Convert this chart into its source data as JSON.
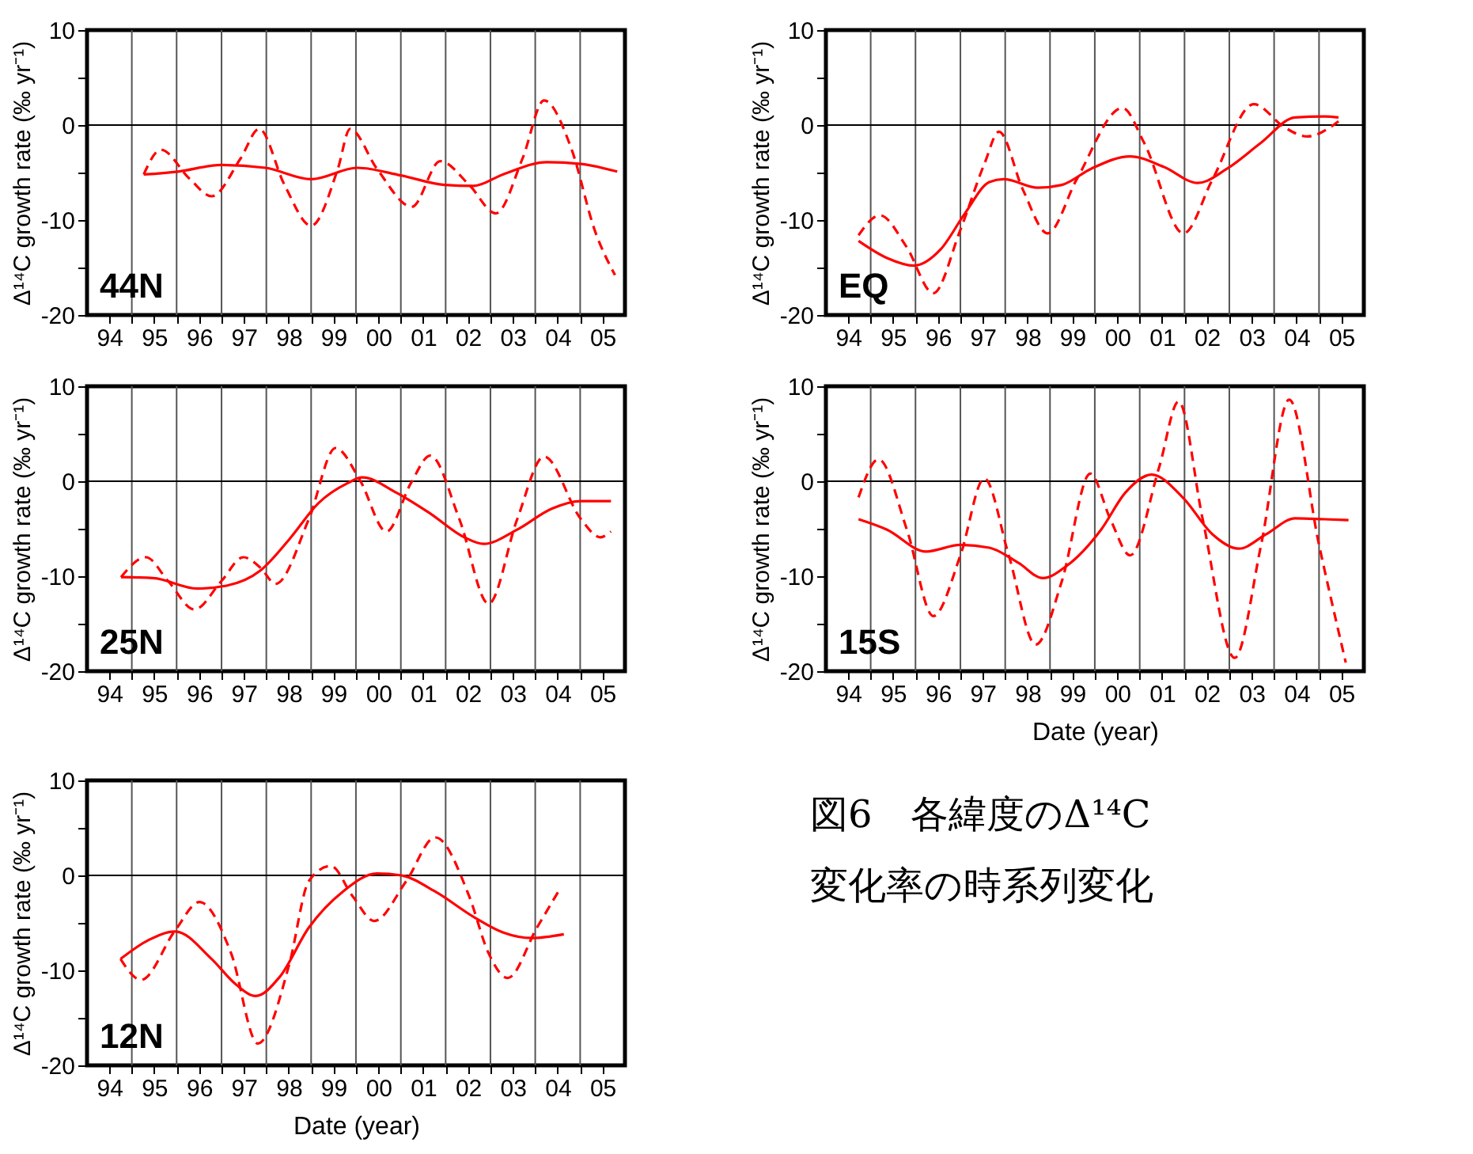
{
  "chart_data": [
    {
      "type": "line",
      "ylabel": "Δ¹⁴C growth rate (‰ yr⁻¹)",
      "annotations": [
        "44N"
      ],
      "xlim": [
        "1994-01-01",
        "2006-01-01"
      ],
      "ylim": [
        -20,
        10
      ],
      "xticks": [
        {
          "value": "1994-07-02",
          "label": "94"
        },
        {
          "value": "1995-07-02",
          "label": "95"
        },
        {
          "value": "1996-07-02",
          "label": "96"
        },
        {
          "value": "1997-07-02",
          "label": "97"
        },
        {
          "value": "1998-07-02",
          "label": "98"
        },
        {
          "value": "1999-07-02",
          "label": "99"
        },
        {
          "value": "2000-07-02",
          "label": "00"
        },
        {
          "value": "2001-07-02",
          "label": "01"
        },
        {
          "value": "2002-07-02",
          "label": "02"
        },
        {
          "value": "2003-07-02",
          "label": "03"
        },
        {
          "value": "2004-07-02",
          "label": "04"
        },
        {
          "value": "2005-07-02",
          "label": "05"
        },
        {
          "value": "1995-01-01",
          "label": null
        },
        {
          "value": "1996-01-01",
          "label": null
        },
        {
          "value": "1997-01-01",
          "label": null
        },
        {
          "value": "1998-01-01",
          "label": null
        },
        {
          "value": "1999-01-01",
          "label": null
        },
        {
          "value": "2000-01-01",
          "label": null
        },
        {
          "value": "2001-01-01",
          "label": null
        },
        {
          "value": "2002-01-01",
          "label": null
        },
        {
          "value": "2003-01-01",
          "label": null
        },
        {
          "value": "2004-01-01",
          "label": null
        },
        {
          "value": "2005-01-01",
          "label": null
        }
      ],
      "yticks": [
        -20,
        -10,
        0,
        10,
        {
          "value": -15,
          "label": null
        },
        {
          "value": -5,
          "label": null
        },
        {
          "value": 5,
          "label": null
        }
      ],
      "grid": "x",
      "ref_lines": [
        {
          "axis": "y",
          "value": 0
        }
      ],
      "series": [
        {
          "color": "#ff0000",
          "line_style": "solid",
          "x": [
            "1995-04-08",
            "1996-01-12",
            "1997-01-01",
            "1997-12-24",
            "1999-01-01",
            "2000-01-12",
            "2001-01-01",
            "2001-12-24",
            "2002-08-18",
            "2003-04-12",
            "2004-04-05",
            "2005-01-08",
            "2005-10-30"
          ],
          "values": [
            -5.2,
            -4.9,
            -4.2,
            -4.5,
            -5.7,
            -4.5,
            -5.3,
            -6.3,
            -6.4,
            -5.2,
            -3.9,
            -4.1,
            -4.9
          ]
        },
        {
          "color": "#ff0000",
          "line_style": "dashed",
          "x": [
            "1995-04-08",
            "1995-08-25",
            "1996-04-19",
            "1996-10-12",
            "1997-06-06",
            "1997-11-03",
            "1998-05-29",
            "1999-01-01",
            "1999-08-07",
            "1999-11-14",
            "2000-06-20",
            "2001-04-01",
            "2001-11-18",
            "2002-07-12",
            "2003-02-14",
            "2003-09-20",
            "2004-03-13",
            "2004-10-19",
            "2005-05-03",
            "2005-10-12"
          ],
          "values": [
            -5.2,
            -2.6,
            -5.7,
            -7.5,
            -3.5,
            -0.4,
            -6.3,
            -10.6,
            -4.6,
            -0.4,
            -4.6,
            -8.6,
            -3.8,
            -6.3,
            -9.3,
            -3.5,
            2.6,
            -2.4,
            -11.2,
            -15.8
          ]
        }
      ]
    },
    {
      "type": "line",
      "ylabel": "Δ¹⁴C growth rate (‰ yr⁻¹)",
      "annotations": [
        "EQ"
      ],
      "xlim": [
        "1994-01-01",
        "2006-01-01"
      ],
      "ylim": [
        -20,
        10
      ],
      "xticks": [
        {
          "value": "1994-07-02",
          "label": "94"
        },
        {
          "value": "1995-07-02",
          "label": "95"
        },
        {
          "value": "1996-07-02",
          "label": "96"
        },
        {
          "value": "1997-07-02",
          "label": "97"
        },
        {
          "value": "1998-07-02",
          "label": "98"
        },
        {
          "value": "1999-07-02",
          "label": "99"
        },
        {
          "value": "2000-07-02",
          "label": "00"
        },
        {
          "value": "2001-07-02",
          "label": "01"
        },
        {
          "value": "2002-07-02",
          "label": "02"
        },
        {
          "value": "2003-07-02",
          "label": "03"
        },
        {
          "value": "2004-07-02",
          "label": "04"
        },
        {
          "value": "2005-07-02",
          "label": "05"
        },
        {
          "value": "1995-01-01",
          "label": null
        },
        {
          "value": "1996-01-01",
          "label": null
        },
        {
          "value": "1997-01-01",
          "label": null
        },
        {
          "value": "1998-01-01",
          "label": null
        },
        {
          "value": "1999-01-01",
          "label": null
        },
        {
          "value": "2000-01-01",
          "label": null
        },
        {
          "value": "2001-01-01",
          "label": null
        },
        {
          "value": "2002-01-01",
          "label": null
        },
        {
          "value": "2003-01-01",
          "label": null
        },
        {
          "value": "2004-01-01",
          "label": null
        },
        {
          "value": "2005-01-01",
          "label": null
        }
      ],
      "yticks": [
        -20,
        -10,
        0,
        10,
        {
          "value": -15,
          "label": null
        },
        {
          "value": -5,
          "label": null
        },
        {
          "value": 5,
          "label": null
        }
      ],
      "grid": "x",
      "ref_lines": [
        {
          "axis": "y",
          "value": 0
        }
      ],
      "series": [
        {
          "color": "#ff0000",
          "line_style": "solid",
          "x": [
            "1994-09-24",
            "1995-05-14",
            "1995-12-20",
            "1996-07-23",
            "1997-02-07",
            "1997-08-25",
            "1997-12-20",
            "1998-09-24",
            "1999-04-08",
            "1999-12-02",
            "2000-10-15",
            "2001-07-15",
            "2002-04-19",
            "2002-12-13",
            "2003-09-13",
            "2004-06-20",
            "2005-02-14",
            "2005-06-09"
          ],
          "values": [
            -12.2,
            -14.0,
            -14.8,
            -13.1,
            -9.3,
            -6.0,
            -5.7,
            -6.6,
            -6.3,
            -4.6,
            -3.3,
            -4.4,
            -6.1,
            -4.6,
            -1.9,
            0.8,
            0.9,
            0.8
          ]
        },
        {
          "color": "#ff0000",
          "line_style": "dashed",
          "x": [
            "1994-09-24",
            "1995-03-17",
            "1995-10-19",
            "1996-05-25",
            "1996-12-27",
            "1997-07-15",
            "1997-11-11",
            "1998-05-25",
            "1998-12-13",
            "1999-08-07",
            "2000-08-14",
            "2001-02-07",
            "2001-12-24",
            "2002-08-18",
            "2003-07-19",
            "2004-04-01",
            "2004-09-27",
            "2005-06-09"
          ],
          "values": [
            -11.6,
            -9.5,
            -12.8,
            -17.7,
            -11.2,
            -4.1,
            -0.7,
            -6.8,
            -11.4,
            -5.7,
            1.8,
            -1.9,
            -11.4,
            -5.7,
            2.2,
            -0.3,
            -1.2,
            0.4
          ]
        }
      ]
    },
    {
      "type": "line",
      "ylabel": "Δ¹⁴C growth rate (‰ yr⁻¹)",
      "annotations": [
        "25N"
      ],
      "xlim": [
        "1994-01-01",
        "2006-01-01"
      ],
      "ylim": [
        -20,
        10
      ],
      "xticks": [
        {
          "value": "1994-07-02",
          "label": "94"
        },
        {
          "value": "1995-07-02",
          "label": "95"
        },
        {
          "value": "1996-07-02",
          "label": "96"
        },
        {
          "value": "1997-07-02",
          "label": "97"
        },
        {
          "value": "1998-07-02",
          "label": "98"
        },
        {
          "value": "1999-07-02",
          "label": "99"
        },
        {
          "value": "2000-07-02",
          "label": "00"
        },
        {
          "value": "2001-07-02",
          "label": "01"
        },
        {
          "value": "2002-07-02",
          "label": "02"
        },
        {
          "value": "2003-07-02",
          "label": "03"
        },
        {
          "value": "2004-07-02",
          "label": "04"
        },
        {
          "value": "2005-07-02",
          "label": "05"
        },
        {
          "value": "1995-01-01",
          "label": null
        },
        {
          "value": "1996-01-01",
          "label": null
        },
        {
          "value": "1997-01-01",
          "label": null
        },
        {
          "value": "1998-01-01",
          "label": null
        },
        {
          "value": "1999-01-01",
          "label": null
        },
        {
          "value": "2000-01-01",
          "label": null
        },
        {
          "value": "2001-01-01",
          "label": null
        },
        {
          "value": "2002-01-01",
          "label": null
        },
        {
          "value": "2003-01-01",
          "label": null
        },
        {
          "value": "2004-01-01",
          "label": null
        },
        {
          "value": "2005-01-01",
          "label": null
        }
      ],
      "yticks": [
        -20,
        -10,
        0,
        10,
        {
          "value": -15,
          "label": null
        },
        {
          "value": -5,
          "label": null
        },
        {
          "value": 5,
          "label": null
        }
      ],
      "grid": "x",
      "ref_lines": [
        {
          "axis": "y",
          "value": 0
        }
      ],
      "series": [
        {
          "color": "#ff0000",
          "line_style": "solid",
          "x": [
            "1994-10-05",
            "1995-06-24",
            "1996-06-17",
            "1997-02-11",
            "1997-11-14",
            "1998-07-08",
            "1999-03-02",
            "1999-10-26",
            "2000-02-21",
            "2000-11-25",
            "2001-08-29",
            "2002-06-02",
            "2002-11-07",
            "2003-08-07",
            "2004-05-14",
            "2005-01-08",
            "2005-09-09"
          ],
          "values": [
            -10.1,
            -10.2,
            -11.3,
            -11.0,
            -9.4,
            -6.1,
            -2.3,
            -0.2,
            0.4,
            -1.2,
            -3.4,
            -5.9,
            -6.6,
            -5.1,
            -2.9,
            -2.1,
            -2.1
          ]
        },
        {
          "color": "#ff0000",
          "line_style": "dashed",
          "x": [
            "1994-10-05",
            "1995-04-26",
            "1995-10-23",
            "1996-05-25",
            "1997-01-01",
            "1997-06-27",
            "1997-11-14",
            "1998-03-17",
            "1998-12-13",
            "1999-07-19",
            "2000-02-03",
            "2000-09-06",
            "2001-03-24",
            "2001-08-29",
            "2002-04-23",
            "2002-12-17",
            "2003-08-07",
            "2004-03-13",
            "2005-01-08",
            "2005-06-13",
            "2005-09-09"
          ],
          "values": [
            -10.1,
            -8.0,
            -10.5,
            -13.5,
            -10.5,
            -8.0,
            -9.1,
            -10.8,
            -4.0,
            3.5,
            0.1,
            -5.3,
            -0.2,
            2.7,
            -4.0,
            -12.9,
            -4.0,
            2.6,
            -4.0,
            -5.9,
            -5.3
          ]
        }
      ]
    },
    {
      "type": "line",
      "ylabel": "Δ¹⁴C growth rate (‰ yr⁻¹)",
      "xlabel": "Date (year)",
      "annotations": [
        "15S"
      ],
      "xlim": [
        "1994-01-01",
        "2006-01-01"
      ],
      "ylim": [
        -20,
        10
      ],
      "xticks": [
        {
          "value": "1994-07-02",
          "label": "94"
        },
        {
          "value": "1995-07-02",
          "label": "95"
        },
        {
          "value": "1996-07-02",
          "label": "96"
        },
        {
          "value": "1997-07-02",
          "label": "97"
        },
        {
          "value": "1998-07-02",
          "label": "98"
        },
        {
          "value": "1999-07-02",
          "label": "99"
        },
        {
          "value": "2000-07-02",
          "label": "00"
        },
        {
          "value": "2001-07-02",
          "label": "01"
        },
        {
          "value": "2002-07-02",
          "label": "02"
        },
        {
          "value": "2003-07-02",
          "label": "03"
        },
        {
          "value": "2004-07-02",
          "label": "04"
        },
        {
          "value": "2005-07-02",
          "label": "05"
        },
        {
          "value": "1995-01-01",
          "label": null
        },
        {
          "value": "1996-01-01",
          "label": null
        },
        {
          "value": "1997-01-01",
          "label": null
        },
        {
          "value": "1998-01-01",
          "label": null
        },
        {
          "value": "1999-01-01",
          "label": null
        },
        {
          "value": "2000-01-01",
          "label": null
        },
        {
          "value": "2001-01-01",
          "label": null
        },
        {
          "value": "2002-01-01",
          "label": null
        },
        {
          "value": "2003-01-01",
          "label": null
        },
        {
          "value": "2004-01-01",
          "label": null
        },
        {
          "value": "2005-01-01",
          "label": null
        }
      ],
      "yticks": [
        -20,
        -10,
        0,
        10,
        {
          "value": -15,
          "label": null
        },
        {
          "value": -5,
          "label": null
        },
        {
          "value": 5,
          "label": null
        }
      ],
      "grid": "x",
      "ref_lines": [
        {
          "axis": "y",
          "value": 0
        }
      ],
      "series": [
        {
          "color": "#ff0000",
          "line_style": "solid",
          "x": [
            "1994-09-24",
            "1995-05-14",
            "1996-03-27",
            "1997-01-01",
            "1997-08-25",
            "1998-04-19",
            "1998-11-03",
            "1999-05-18",
            "2000-02-21",
            "2000-09-06",
            "2001-04-08",
            "2001-12-24",
            "2002-08-18",
            "2003-03-20",
            "2003-10-26",
            "2004-06-20",
            "2005-02-14",
            "2005-08-29"
          ],
          "values": [
            -4.0,
            -5.1,
            -7.4,
            -6.7,
            -7.0,
            -8.6,
            -10.2,
            -8.9,
            -5.1,
            -1.2,
            0.7,
            -1.8,
            -5.6,
            -7.1,
            -5.6,
            -3.9,
            -4.0,
            -4.1
          ]
        },
        {
          "color": "#ff0000",
          "line_style": "dashed",
          "x": [
            "1994-09-24",
            "1995-03-06",
            "1995-10-23",
            "1996-05-25",
            "1997-01-01",
            "1997-07-15",
            "1998-01-30",
            "1998-09-06",
            "1999-04-08",
            "1999-11-25",
            "2000-05-07",
            "2000-10-15",
            "2001-06-09",
            "2001-11-14",
            "2002-05-29",
            "2003-02-14",
            "2003-09-17",
            "2004-05-03",
            "2005-01-01",
            "2005-08-07"
          ],
          "values": [
            -1.7,
            2.3,
            -5.1,
            -14.2,
            -7.8,
            0.3,
            -7.8,
            -17.2,
            -10.5,
            0.8,
            -4.0,
            -7.8,
            1.5,
            8.4,
            -4.0,
            -18.6,
            -6.7,
            8.6,
            -6.7,
            -19.1
          ]
        }
      ]
    },
    {
      "type": "line",
      "ylabel": "Δ¹⁴C growth rate (‰ yr⁻¹)",
      "xlabel": "Date (year)",
      "annotations": [
        "12N",
        "図6　各緯度のΔ¹⁴C",
        "変化率の時系列変化"
      ],
      "xlim": [
        "1994-01-01",
        "2006-01-01"
      ],
      "ylim": [
        -20,
        10
      ],
      "xticks": [
        {
          "value": "1994-07-02",
          "label": "94"
        },
        {
          "value": "1995-07-02",
          "label": "95"
        },
        {
          "value": "1996-07-02",
          "label": "96"
        },
        {
          "value": "1997-07-02",
          "label": "97"
        },
        {
          "value": "1998-07-02",
          "label": "98"
        },
        {
          "value": "1999-07-02",
          "label": "99"
        },
        {
          "value": "2000-07-02",
          "label": "00"
        },
        {
          "value": "2001-07-02",
          "label": "01"
        },
        {
          "value": "2002-07-02",
          "label": "02"
        },
        {
          "value": "2003-07-02",
          "label": "03"
        },
        {
          "value": "2004-07-02",
          "label": "04"
        },
        {
          "value": "2005-07-02",
          "label": "05"
        },
        {
          "value": "1995-01-01",
          "label": null
        },
        {
          "value": "1996-01-01",
          "label": null
        },
        {
          "value": "1997-01-01",
          "label": null
        },
        {
          "value": "1998-01-01",
          "label": null
        },
        {
          "value": "1999-01-01",
          "label": null
        },
        {
          "value": "2000-01-01",
          "label": null
        },
        {
          "value": "2001-01-01",
          "label": null
        },
        {
          "value": "2002-01-01",
          "label": null
        },
        {
          "value": "2003-01-01",
          "label": null
        },
        {
          "value": "2004-01-01",
          "label": null
        },
        {
          "value": "2005-01-01",
          "label": null
        }
      ],
      "yticks": [
        -20,
        -10,
        0,
        10,
        {
          "value": -15,
          "label": null
        },
        {
          "value": -5,
          "label": null
        },
        {
          "value": 5,
          "label": null
        }
      ],
      "grid": "x",
      "ref_lines": [
        {
          "axis": "y",
          "value": 0
        }
      ],
      "series": [
        {
          "color": "#ff0000",
          "line_style": "solid",
          "x": [
            "1994-10-01",
            "1995-05-18",
            "1995-12-20",
            "1996-10-12",
            "1997-04-30",
            "1997-10-05",
            "1998-04-19",
            "1998-12-13",
            "1999-09-17",
            "2000-06-20",
            "2001-01-05",
            "2001-10-08",
            "2002-08-21",
            "2003-04-12",
            "2003-12-06",
            "2004-08-21"
          ],
          "values": [
            -8.8,
            -6.8,
            -5.9,
            -8.8,
            -11.5,
            -12.7,
            -10.7,
            -5.5,
            -1.7,
            0.2,
            0.0,
            -1.7,
            -4.4,
            -6.0,
            -6.6,
            -6.2
          ]
        },
        {
          "color": "#ff0000",
          "line_style": "dashed",
          "x": [
            "1994-10-01",
            "1995-03-17",
            "1995-12-20",
            "1996-07-05",
            "1997-03-20",
            "1997-10-23",
            "1998-07-08",
            "1998-12-13",
            "1999-06-09",
            "1999-12-06",
            "2000-05-29",
            "2001-02-14",
            "2001-10-08",
            "2002-07-12",
            "2002-12-17",
            "2003-05-21",
            "2004-01-15",
            "2004-07-12"
          ],
          "values": [
            -8.8,
            -11.0,
            -5.8,
            -2.8,
            -8.2,
            -17.7,
            -9.3,
            -0.6,
            1.0,
            -2.2,
            -4.8,
            -0.6,
            4.0,
            -2.2,
            -8.2,
            -10.8,
            -5.5,
            -1.6
          ]
        }
      ]
    }
  ]
}
